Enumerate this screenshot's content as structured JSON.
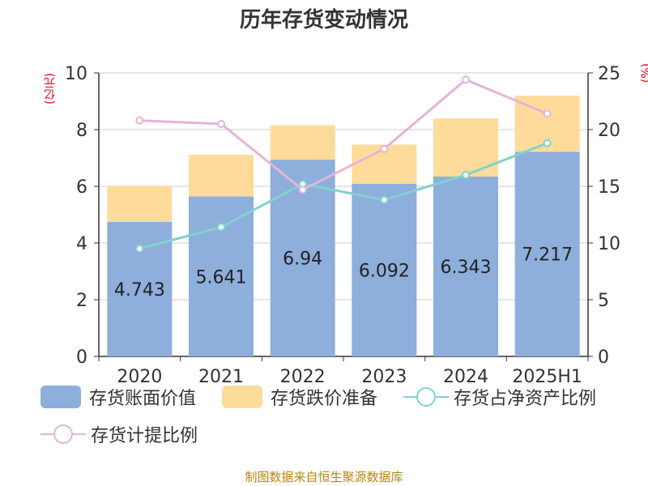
{
  "chart_data": {
    "type": "bar",
    "title": "历年存货变动情况",
    "ylabel_left": "(亿元)",
    "ylabel_right": "(%)",
    "categories": [
      "2020",
      "2021",
      "2022",
      "2023",
      "2024",
      "2025H1"
    ],
    "y_left": {
      "min": 0,
      "max": 10,
      "ticks": [
        "0",
        "2",
        "4",
        "6",
        "8",
        "10"
      ]
    },
    "y_right": {
      "min": 0,
      "max": 25,
      "ticks": [
        "0",
        "5",
        "10",
        "15",
        "20",
        "25"
      ]
    },
    "stacked_bars": [
      {
        "name": "存货账面价值",
        "color": "#8eaedb",
        "values": [
          4.743,
          5.641,
          6.94,
          6.092,
          6.343,
          7.217
        ],
        "labels": [
          "4.743",
          "5.641",
          "6.94",
          "6.092",
          "6.343",
          "7.217"
        ]
      },
      {
        "name": "存货跌价准备",
        "color": "#fddb9a",
        "values": [
          1.26,
          1.47,
          1.21,
          1.38,
          2.05,
          1.98
        ]
      }
    ],
    "lines": [
      {
        "name": "存货占净资产比例",
        "color": "#7fd3cf",
        "axis": "right",
        "values": [
          9.5,
          11.4,
          15.2,
          13.8,
          16.0,
          18.8
        ]
      },
      {
        "name": "存货计提比例",
        "color": "#e3b5d8",
        "axis": "right",
        "values": [
          20.8,
          20.5,
          14.7,
          18.3,
          24.4,
          21.4
        ]
      }
    ],
    "grid": true,
    "legend_position": "bottom"
  },
  "footer": {
    "source": "制图数据来自恒生聚源数据库"
  }
}
